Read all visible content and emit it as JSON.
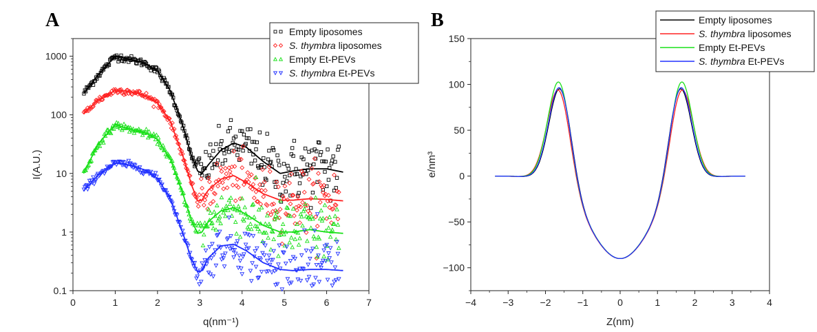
{
  "figure": {
    "panels": [
      {
        "letter": "A"
      },
      {
        "letter": "B"
      }
    ]
  },
  "chart_data": [
    {
      "type": "scatter",
      "panel": "A",
      "xlabel": "q(nm⁻¹)",
      "ylabel": "I(A.U.)",
      "xlim": [
        0,
        7
      ],
      "ylim": [
        0.1,
        2000
      ],
      "yscale": "log",
      "x_ticks": [
        "0",
        "1",
        "2",
        "3",
        "4",
        "5",
        "6",
        "7"
      ],
      "y_ticks": [
        "0.1",
        "1",
        "10",
        "100",
        "1000"
      ],
      "legend_position": "top-right",
      "series": [
        {
          "name": "Empty liposomes",
          "name_italic": "",
          "name_rest": "Empty liposomes",
          "color": "#000000",
          "marker": "square",
          "scale": 1.0,
          "fit_x": [
            0.25,
            0.6,
            1.0,
            1.3,
            1.7,
            2.0,
            2.3,
            2.6,
            2.8,
            2.95,
            3.05,
            3.2,
            3.5,
            3.8,
            4.1,
            4.5,
            4.9,
            5.2,
            5.6,
            6.0,
            6.4
          ],
          "fit_y": [
            230,
            480,
            1000,
            900,
            760,
            560,
            260,
            65,
            20,
            11,
            10,
            14,
            25,
            33,
            28,
            16,
            10,
            11,
            12,
            12,
            10.5
          ]
        },
        {
          "name": "S. thymbra liposomes",
          "name_italic": "S. thymbra",
          "name_rest": " liposomes",
          "color": "#ff2020",
          "marker": "diamond",
          "scale": 0.28,
          "fit_x": [
            0.25,
            0.6,
            1.0,
            1.3,
            1.7,
            2.0,
            2.3,
            2.6,
            2.8,
            2.95,
            3.05,
            3.2,
            3.5,
            3.8,
            4.1,
            4.5,
            4.9,
            5.2,
            5.6,
            6.0,
            6.4
          ],
          "fit_y": [
            105,
            180,
            260,
            255,
            215,
            160,
            78,
            20,
            6.5,
            3.4,
            3.5,
            5.2,
            8,
            9.2,
            7,
            4.5,
            3.5,
            3.5,
            3.7,
            3.6,
            3.4
          ]
        },
        {
          "name": "Empty Et-PEVs",
          "name_italic": "",
          "name_rest": "Empty Et-PEVs",
          "color": "#19e019",
          "marker": "triangle-up",
          "scale": 0.07,
          "fit_x": [
            0.25,
            0.6,
            1.0,
            1.3,
            1.7,
            2.0,
            2.3,
            2.6,
            2.8,
            2.95,
            3.05,
            3.2,
            3.5,
            3.8,
            4.1,
            4.5,
            4.9,
            5.2,
            5.6,
            6.0,
            6.4
          ],
          "fit_y": [
            10,
            32,
            68,
            58,
            50,
            38,
            18,
            4.5,
            1.6,
            0.95,
            1.0,
            1.5,
            2.3,
            2.6,
            2.0,
            1.3,
            1.0,
            1.0,
            1.1,
            1.0,
            0.95
          ]
        },
        {
          "name": "S. thymbra Et-PEVs",
          "name_italic": "S. thymbra",
          "name_rest": " Et-PEVs",
          "color": "#2030ff",
          "marker": "triangle-down",
          "scale": 0.015,
          "fit_x": [
            0.25,
            0.6,
            1.0,
            1.3,
            1.7,
            2.0,
            2.3,
            2.6,
            2.8,
            2.95,
            3.05,
            3.2,
            3.5,
            3.8,
            4.1,
            4.5,
            4.9,
            5.2,
            5.6,
            6.0,
            6.4
          ],
          "fit_y": [
            5,
            9.5,
            15,
            14,
            11.5,
            8.2,
            3.8,
            0.95,
            0.35,
            0.21,
            0.22,
            0.36,
            0.58,
            0.62,
            0.48,
            0.3,
            0.23,
            0.22,
            0.23,
            0.23,
            0.22
          ]
        }
      ]
    },
    {
      "type": "line",
      "panel": "B",
      "xlabel": "Z(nm)",
      "ylabel": "e/nm³",
      "xlim": [
        -4,
        4
      ],
      "ylim": [
        -125,
        150
      ],
      "x_ticks": [
        "−4",
        "−3",
        "−2",
        "−1",
        "0",
        "1",
        "2",
        "3",
        "4"
      ],
      "y_ticks": [
        "−100",
        "−50",
        "0",
        "50",
        "100",
        "150"
      ],
      "legend_position": "top-right",
      "series": [
        {
          "name": "Empty liposomes",
          "name_italic": "",
          "name_rest": "Empty liposomes",
          "color": "#000000",
          "peak_pos": 1.6,
          "peak_height": 110,
          "peak_width": 0.3,
          "center_depth": -90,
          "center_width": 0.85
        },
        {
          "name": "S. thymbra liposomes",
          "name_italic": "S. thymbra",
          "name_rest": " liposomes",
          "color": "#ff2020",
          "peak_pos": 1.64,
          "peak_height": 108,
          "peak_width": 0.31,
          "center_depth": -90,
          "center_width": 0.86
        },
        {
          "name": "Empty Et-PEVs",
          "name_italic": "",
          "name_rest": "Empty Et-PEVs",
          "color": "#19e019",
          "peak_pos": 1.63,
          "peak_height": 116,
          "peak_width": 0.3,
          "center_depth": -90,
          "center_width": 0.84
        },
        {
          "name": "S. thymbra Et-PEVs",
          "name_italic": "S. thymbra",
          "name_rest": " Et-PEVs",
          "color": "#2030ff",
          "peak_pos": 1.61,
          "peak_height": 111,
          "peak_width": 0.3,
          "center_depth": -90,
          "center_width": 0.85
        }
      ],
      "x_range_curve": [
        -3.35,
        3.35
      ]
    }
  ]
}
